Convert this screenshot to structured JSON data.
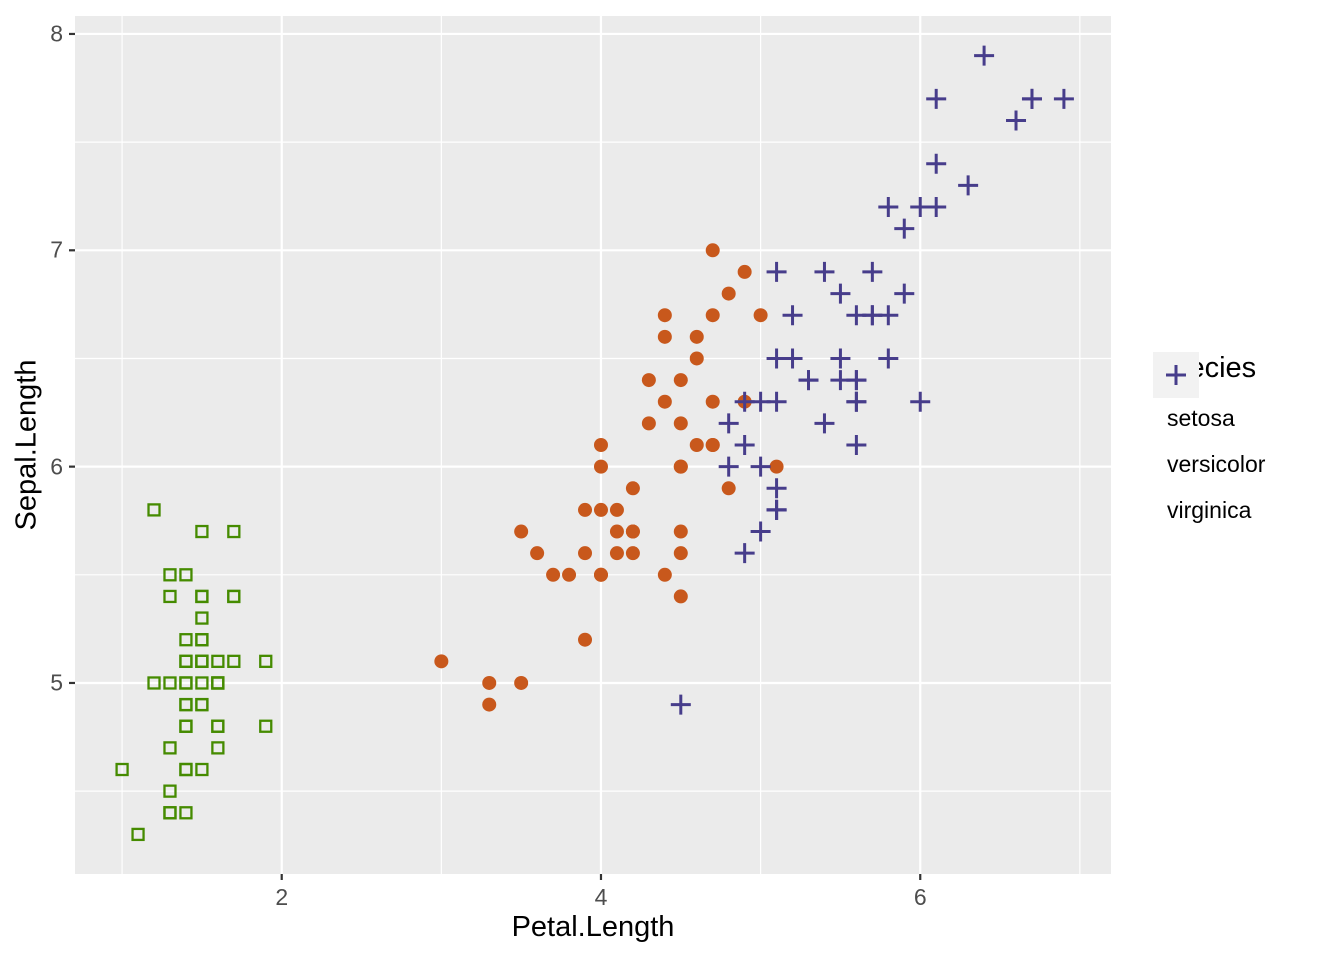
{
  "chart_data": {
    "type": "scatter",
    "title": "",
    "xlabel": "Petal.Length",
    "ylabel": "Sepal.Length",
    "legend_title": "Species",
    "legend_position": "right",
    "grid": true,
    "panel_bg": "#EBEBEB",
    "grid_major_color": "#FFFFFF",
    "grid_minor_color": "#FFFFFF",
    "tick_label_color": "#4D4D4D",
    "tick_mark_color": "#333333",
    "xlim": [
      0.705,
      7.195
    ],
    "ylim": [
      4.117,
      8.083
    ],
    "x_ticks": [
      2,
      4,
      6
    ],
    "y_ticks": [
      5,
      6,
      7,
      8
    ],
    "x_minor_ticks": [
      1,
      3,
      5,
      7
    ],
    "y_minor_ticks": [
      4.5,
      5.5,
      6.5,
      7.5
    ],
    "series": [
      {
        "name": "setosa",
        "marker": "open-square",
        "color": "#458B00",
        "points": [
          [
            1.4,
            5.1
          ],
          [
            1.4,
            4.9
          ],
          [
            1.3,
            4.7
          ],
          [
            1.5,
            4.6
          ],
          [
            1.4,
            5.0
          ],
          [
            1.7,
            5.4
          ],
          [
            1.4,
            4.6
          ],
          [
            1.5,
            5.0
          ],
          [
            1.4,
            4.4
          ],
          [
            1.5,
            4.9
          ],
          [
            1.5,
            5.4
          ],
          [
            1.6,
            4.8
          ],
          [
            1.4,
            4.8
          ],
          [
            1.1,
            4.3
          ],
          [
            1.2,
            5.8
          ],
          [
            1.5,
            5.7
          ],
          [
            1.3,
            5.4
          ],
          [
            1.4,
            5.1
          ],
          [
            1.7,
            5.7
          ],
          [
            1.5,
            5.1
          ],
          [
            1.7,
            5.4
          ],
          [
            1.5,
            5.1
          ],
          [
            1.0,
            4.6
          ],
          [
            1.7,
            5.1
          ],
          [
            1.9,
            4.8
          ],
          [
            1.6,
            5.0
          ],
          [
            1.6,
            5.0
          ],
          [
            1.5,
            5.2
          ],
          [
            1.4,
            5.2
          ],
          [
            1.6,
            4.7
          ],
          [
            1.6,
            4.8
          ],
          [
            1.5,
            5.4
          ],
          [
            1.5,
            5.2
          ],
          [
            1.4,
            5.5
          ],
          [
            1.5,
            4.9
          ],
          [
            1.2,
            5.0
          ],
          [
            1.3,
            5.5
          ],
          [
            1.4,
            4.9
          ],
          [
            1.3,
            4.4
          ],
          [
            1.5,
            5.1
          ],
          [
            1.3,
            5.0
          ],
          [
            1.3,
            4.5
          ],
          [
            1.3,
            4.4
          ],
          [
            1.6,
            5.0
          ],
          [
            1.9,
            5.1
          ],
          [
            1.4,
            4.8
          ],
          [
            1.6,
            5.1
          ],
          [
            1.4,
            4.6
          ],
          [
            1.5,
            5.3
          ],
          [
            1.4,
            5.0
          ]
        ]
      },
      {
        "name": "versicolor",
        "marker": "filled-circle",
        "color": "#C8581C",
        "points": [
          [
            4.7,
            7.0
          ],
          [
            4.5,
            6.4
          ],
          [
            4.9,
            6.9
          ],
          [
            4.0,
            5.5
          ],
          [
            4.6,
            6.5
          ],
          [
            4.5,
            5.7
          ],
          [
            4.7,
            6.3
          ],
          [
            3.3,
            4.9
          ],
          [
            4.6,
            6.6
          ],
          [
            3.9,
            5.2
          ],
          [
            3.5,
            5.0
          ],
          [
            4.2,
            5.9
          ],
          [
            4.0,
            6.0
          ],
          [
            4.7,
            6.1
          ],
          [
            3.6,
            5.6
          ],
          [
            4.4,
            6.7
          ],
          [
            4.5,
            5.6
          ],
          [
            4.1,
            5.8
          ],
          [
            4.5,
            6.2
          ],
          [
            3.9,
            5.6
          ],
          [
            4.8,
            5.9
          ],
          [
            4.0,
            6.1
          ],
          [
            4.9,
            6.3
          ],
          [
            4.7,
            6.1
          ],
          [
            4.3,
            6.4
          ],
          [
            4.4,
            6.6
          ],
          [
            4.8,
            6.8
          ],
          [
            5.0,
            6.7
          ],
          [
            4.5,
            6.0
          ],
          [
            3.5,
            5.7
          ],
          [
            3.8,
            5.5
          ],
          [
            3.7,
            5.5
          ],
          [
            3.9,
            5.8
          ],
          [
            5.1,
            6.0
          ],
          [
            4.5,
            5.4
          ],
          [
            4.5,
            6.0
          ],
          [
            4.7,
            6.7
          ],
          [
            4.4,
            6.3
          ],
          [
            4.1,
            5.6
          ],
          [
            4.0,
            5.5
          ],
          [
            4.4,
            5.5
          ],
          [
            4.6,
            6.1
          ],
          [
            4.0,
            5.8
          ],
          [
            3.3,
            5.0
          ],
          [
            4.2,
            5.6
          ],
          [
            4.2,
            5.7
          ],
          [
            4.2,
            5.7
          ],
          [
            4.3,
            6.2
          ],
          [
            3.0,
            5.1
          ],
          [
            4.1,
            5.7
          ]
        ]
      },
      {
        "name": "virginica",
        "marker": "plus",
        "color": "#473D8B",
        "points": [
          [
            6.0,
            6.3
          ],
          [
            5.1,
            5.8
          ],
          [
            5.9,
            7.1
          ],
          [
            5.6,
            6.3
          ],
          [
            5.8,
            6.5
          ],
          [
            6.6,
            7.6
          ],
          [
            4.5,
            4.9
          ],
          [
            6.3,
            7.3
          ],
          [
            5.8,
            6.7
          ],
          [
            6.1,
            7.2
          ],
          [
            5.1,
            6.5
          ],
          [
            5.3,
            6.4
          ],
          [
            5.5,
            6.8
          ],
          [
            5.0,
            5.7
          ],
          [
            5.1,
            5.8
          ],
          [
            5.3,
            6.4
          ],
          [
            5.5,
            6.5
          ],
          [
            6.7,
            7.7
          ],
          [
            6.9,
            7.7
          ],
          [
            5.0,
            6.0
          ],
          [
            5.7,
            6.9
          ],
          [
            4.9,
            5.6
          ],
          [
            6.7,
            7.7
          ],
          [
            4.9,
            6.3
          ],
          [
            5.7,
            6.7
          ],
          [
            6.0,
            7.2
          ],
          [
            4.8,
            6.2
          ],
          [
            4.9,
            6.1
          ],
          [
            5.6,
            6.4
          ],
          [
            5.8,
            7.2
          ],
          [
            6.1,
            7.4
          ],
          [
            6.4,
            7.9
          ],
          [
            5.6,
            6.4
          ],
          [
            5.1,
            6.3
          ],
          [
            5.6,
            6.1
          ],
          [
            6.1,
            7.7
          ],
          [
            5.6,
            6.3
          ],
          [
            5.5,
            6.4
          ],
          [
            4.8,
            6.0
          ],
          [
            5.4,
            6.9
          ],
          [
            5.6,
            6.7
          ],
          [
            5.1,
            6.9
          ],
          [
            5.1,
            5.8
          ],
          [
            5.9,
            6.8
          ],
          [
            5.7,
            6.7
          ],
          [
            5.2,
            6.7
          ],
          [
            5.0,
            6.3
          ],
          [
            5.2,
            6.5
          ],
          [
            5.4,
            6.2
          ],
          [
            5.1,
            5.9
          ]
        ]
      }
    ]
  }
}
